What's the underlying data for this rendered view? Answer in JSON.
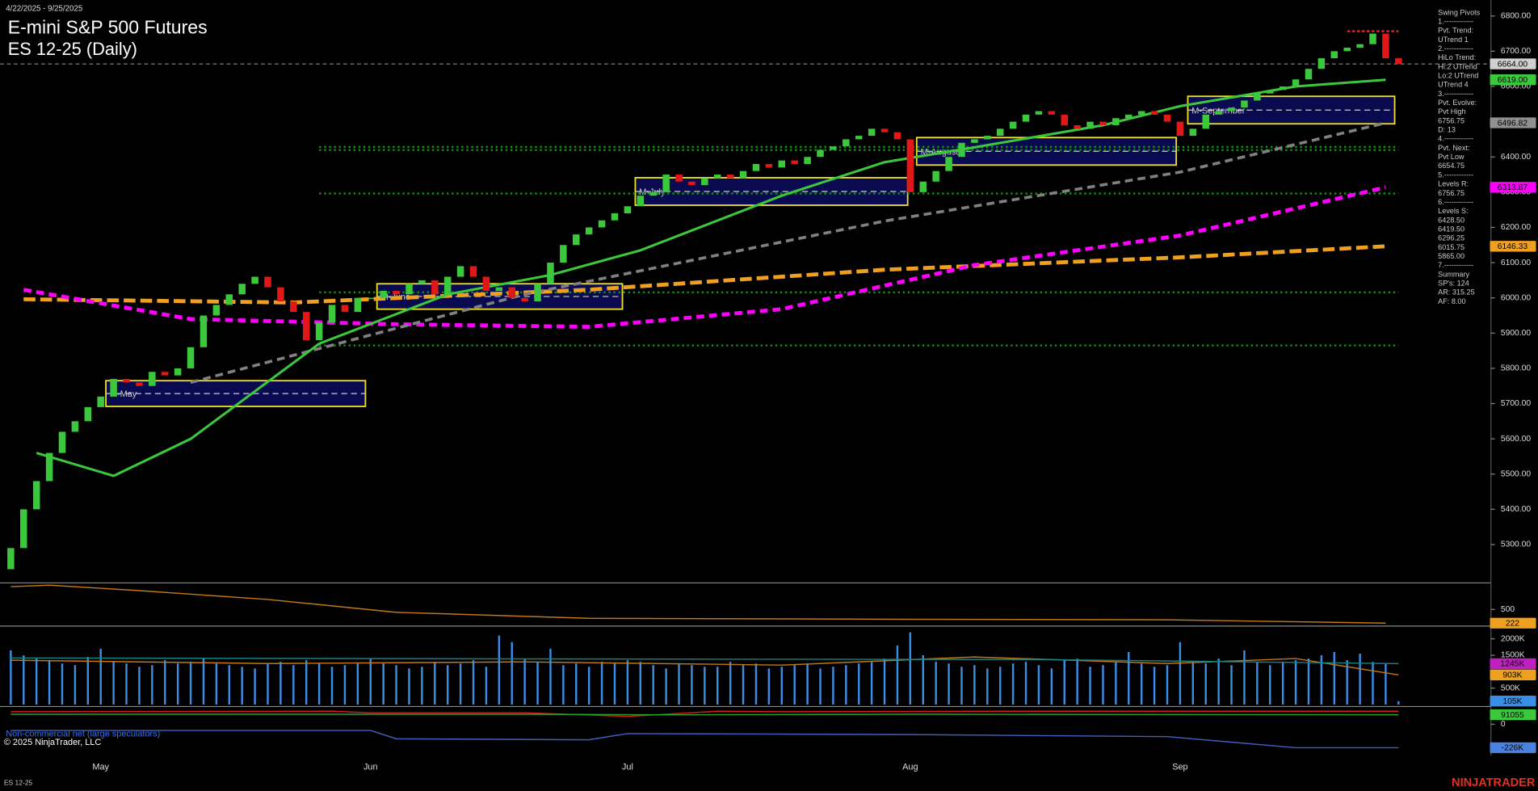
{
  "header": {
    "range": "4/22/2025 - 9/25/2025",
    "title": "E-mini S&P 500 Futures",
    "subtitle": "ES 12-25 (Daily)"
  },
  "footer": {
    "copyright": "© 2025 NinjaTrader, LLC",
    "instrument": "ES 12-25",
    "brand": "NINJATRADER",
    "cot_label": "Non-commercial net (large speculators)"
  },
  "info_panel": [
    "Swing Pivots",
    "1.------------",
    "Pvt. Trend:",
    "UTrend 1",
    "2.------------",
    "HiLo Trend:",
    "Hi:2 UTrend",
    "Lo:2 UTrend",
    "UTrend 4",
    "3.------------",
    "Pvt. Evolve:",
    "Pvt High",
    "6756.75",
    "D: 13",
    "4.------------",
    "Pvt. Next:",
    "Pvt Low",
    "6654.75",
    "5.------------",
    "Levels R:",
    "6756.75",
    "6.------------",
    "Levels S:",
    "6428.50",
    "6419.50",
    "6296.25",
    "6015.75",
    "5865.00",
    "7.------------",
    "Summary",
    "SP's: 124",
    "AR: 315.25",
    "AF: 8.00"
  ],
  "chart_data": [
    {
      "type": "candlestick",
      "categories": [
        null,
        null,
        null,
        null,
        null,
        null,
        null,
        "May",
        null,
        null,
        null,
        null,
        null,
        null,
        null,
        null,
        null,
        null,
        null,
        null,
        null,
        null,
        null,
        null,
        null,
        null,
        null,
        null,
        "Jun",
        null,
        null,
        null,
        null,
        null,
        null,
        null,
        null,
        null,
        null,
        null,
        null,
        null,
        null,
        null,
        null,
        null,
        null,
        null,
        "Jul",
        null,
        null,
        null,
        null,
        null,
        null,
        null,
        null,
        null,
        null,
        null,
        null,
        null,
        null,
        null,
        null,
        null,
        null,
        null,
        null,
        null,
        "Aug",
        null,
        null,
        null,
        null,
        null,
        null,
        null,
        null,
        null,
        null,
        null,
        null,
        null,
        null,
        null,
        null,
        null,
        null,
        null,
        null,
        "Sep",
        null,
        null,
        null,
        null,
        null,
        null,
        null,
        null,
        null,
        null,
        null,
        null,
        null,
        null,
        null,
        null,
        null
      ],
      "open": [
        5230,
        5290,
        5400,
        5480,
        5560,
        5620,
        5650,
        5690,
        5720,
        5770,
        5760,
        5750,
        5790,
        5780,
        5800,
        5860,
        5950,
        5980,
        6010,
        6040,
        6060,
        6030,
        5990,
        5960,
        5880,
        5930,
        5980,
        5960,
        6000,
        6000,
        6020,
        6010,
        6040,
        6050,
        6010,
        6060,
        6090,
        6060,
        6020,
        6030,
        6000,
        5990,
        6040,
        6100,
        6150,
        6180,
        6200,
        6220,
        6240,
        6260,
        6290,
        6300,
        6350,
        6330,
        6320,
        6340,
        6350,
        6340,
        6360,
        6380,
        6370,
        6390,
        6380,
        6400,
        6420,
        6430,
        6450,
        6460,
        6480,
        6470,
        6450,
        6300,
        6330,
        6360,
        6400,
        6440,
        6450,
        6460,
        6480,
        6500,
        6520,
        6530,
        6520,
        6490,
        6480,
        6500,
        6490,
        6510,
        6520,
        6530,
        6520,
        6500,
        6460,
        6480,
        6520,
        6530,
        6540,
        6560,
        6580,
        6590,
        6600,
        6620,
        6650,
        6680,
        6700,
        6710,
        6720,
        6750,
        6680
      ],
      "close": [
        5290,
        5400,
        5480,
        5560,
        5620,
        5650,
        5690,
        5720,
        5770,
        5760,
        5750,
        5790,
        5780,
        5800,
        5860,
        5950,
        5980,
        6010,
        6040,
        6060,
        6030,
        5990,
        5960,
        5880,
        5930,
        5980,
        5960,
        6000,
        6000,
        6020,
        6010,
        6040,
        6050,
        6010,
        6060,
        6090,
        6060,
        6020,
        6030,
        6000,
        5990,
        6040,
        6100,
        6150,
        6180,
        6200,
        6220,
        6240,
        6260,
        6290,
        6300,
        6350,
        6330,
        6320,
        6340,
        6350,
        6340,
        6360,
        6380,
        6370,
        6390,
        6380,
        6400,
        6420,
        6430,
        6450,
        6460,
        6480,
        6470,
        6450,
        6300,
        6330,
        6360,
        6400,
        6440,
        6450,
        6460,
        6480,
        6500,
        6520,
        6530,
        6520,
        6490,
        6480,
        6500,
        6490,
        6510,
        6520,
        6530,
        6520,
        6500,
        6460,
        6480,
        6520,
        6530,
        6540,
        6560,
        6580,
        6590,
        6600,
        6620,
        6650,
        6680,
        6700,
        6710,
        6720,
        6750,
        6680,
        6664
      ],
      "up_color": "#3cc83c",
      "down_color": "#e01818",
      "ylim": [
        5194,
        6845
      ],
      "yticks": [
        {
          "value": 6800,
          "label": "6800.00"
        },
        {
          "value": 6700,
          "label": "6700.00"
        },
        {
          "value": 6600,
          "label": "6600.00"
        },
        {
          "value": 6500,
          "label": "6500.00"
        },
        {
          "value": 6400,
          "label": "6400.00"
        },
        {
          "value": 6300,
          "label": "6300.00"
        },
        {
          "value": 6200,
          "label": "6200.00"
        },
        {
          "value": 6100,
          "label": "6100.00"
        },
        {
          "value": 6000,
          "label": "6000.00"
        },
        {
          "value": 5900,
          "label": "5900.00"
        },
        {
          "value": 5800,
          "label": "5800.00"
        },
        {
          "value": 5700,
          "label": "5700.00"
        },
        {
          "value": 5600,
          "label": "5600.00"
        },
        {
          "value": 5500,
          "label": "5500.00"
        },
        {
          "value": 5400,
          "label": "5400.00"
        },
        {
          "value": 5300,
          "label": "5300.00"
        }
      ],
      "overlays": [
        {
          "color": "#f0a020",
          "dash": "12 5",
          "width": 4,
          "x": [
            1,
            22,
            45,
            68,
            91,
            107
          ],
          "values": [
            5996,
            5987,
            6023,
            6080,
            6115,
            6146.33
          ]
        },
        {
          "color": "#ff00ff",
          "dash": "8 5",
          "width": 4,
          "x": [
            1,
            14,
            30,
            45,
            60,
            75,
            91,
            107
          ],
          "values": [
            6023,
            5940,
            5925,
            5918,
            5968,
            6093,
            6177,
            6313.87
          ]
        },
        {
          "color": "#808080",
          "dash": "8 5",
          "width": 3,
          "x": [
            14,
            40,
            68,
            91,
            107
          ],
          "values": [
            5760,
            6010,
            6218,
            6357,
            6496.82
          ]
        },
        {
          "color": "#3cc83c",
          "dash": "",
          "width": 2.5,
          "x": [
            2,
            8,
            14,
            24,
            34,
            42,
            49,
            60,
            68,
            75,
            85,
            91,
            100,
            107
          ],
          "values": [
            5560,
            5495,
            5600,
            5870,
            6010,
            6065,
            6135,
            6290,
            6385,
            6427,
            6490,
            6544,
            6600,
            6619
          ]
        }
      ],
      "support_levels": [
        6428.5,
        6419.5,
        6296.25,
        6015.75,
        5865
      ],
      "resistance_levels": [
        6756.75
      ],
      "boxes": [
        {
          "label": "M-May",
          "x": [
            7.4,
            27.6
          ],
          "y": [
            5692,
            5765
          ]
        },
        {
          "label": "M-June",
          "x": [
            28.5,
            47.6
          ],
          "y": [
            5968,
            6040
          ]
        },
        {
          "label": "M-July",
          "x": [
            48.6,
            69.8
          ],
          "y": [
            6263,
            6341
          ]
        },
        {
          "label": "M-August",
          "x": [
            70.5,
            90.7
          ],
          "y": [
            6377,
            6455
          ]
        },
        {
          "label": "M-September",
          "x": [
            91.6,
            107.7
          ],
          "y": [
            6494,
            6572
          ]
        }
      ],
      "last_labels": [
        {
          "value": 6664,
          "label": "6664.00",
          "color": "#d0d0d0"
        },
        {
          "value": 6619,
          "label": "6619.00",
          "color": "#3cc83c"
        },
        {
          "value": 6496.82,
          "label": "6496.82",
          "color": "#909090"
        },
        {
          "value": 6313.87,
          "label": "6313.87",
          "color": "#ff00ff"
        },
        {
          "value": 6146.33,
          "label": "6146.33",
          "color": "#f0a020"
        }
      ]
    },
    {
      "type": "line",
      "ylim": [
        183,
        1016
      ],
      "yticks": [
        500
      ],
      "series": [
        {
          "color": "#c07818",
          "x": [
            0,
            3,
            10,
            20,
            30,
            45,
            70,
            90,
            107
          ],
          "values": [
            960,
            990,
            880,
            700,
            440,
            320,
            300,
            290,
            222
          ]
        }
      ],
      "last_labels": [
        {
          "value": 222,
          "label": "222",
          "color": "#f0a020"
        }
      ]
    },
    {
      "type": "bar",
      "color": "#3a8ee6",
      "ylim": [
        0,
        2330
      ],
      "yticks": [
        {
          "value": 2000,
          "label": "2000K"
        },
        {
          "value": 1500,
          "label": "1500K"
        },
        {
          "value": 500,
          "label": "500K"
        }
      ],
      "values": [
        1650,
        1500,
        1400,
        1350,
        1250,
        1200,
        1450,
        1700,
        1300,
        1250,
        1150,
        1200,
        1350,
        1250,
        1300,
        1400,
        1250,
        1200,
        1150,
        1100,
        1250,
        1300,
        1200,
        1350,
        1250,
        1150,
        1200,
        1250,
        1400,
        1250,
        1200,
        1100,
        1150,
        1300,
        1200,
        1250,
        1350,
        1150,
        2100,
        1900,
        1400,
        1300,
        1700,
        1200,
        1250,
        1150,
        1300,
        1250,
        1350,
        1300,
        1200,
        1100,
        1250,
        1200,
        1150,
        1150,
        1300,
        1200,
        1250,
        1100,
        1150,
        1200,
        1250,
        1100,
        1150,
        1200,
        1250,
        1300,
        1400,
        1800,
        2200,
        1500,
        1300,
        1250,
        1150,
        1200,
        1100,
        1150,
        1250,
        1300,
        1200,
        1100,
        1350,
        1400,
        1150,
        1200,
        1300,
        1600,
        1250,
        1150,
        1200,
        1900,
        1300,
        1250,
        1400,
        1200,
        1650,
        1300,
        1200,
        1300,
        1350,
        1400,
        1500,
        1600,
        1350,
        1550,
        1300,
        1250,
        105
      ],
      "series": [
        {
          "color": "#c07818",
          "x": [
            0,
            20,
            40,
            60,
            75,
            90,
            100,
            108
          ],
          "values": [
            1350,
            1250,
            1300,
            1200,
            1450,
            1250,
            1400,
            903
          ]
        },
        {
          "color": "#1a8080",
          "x": [
            0,
            40,
            80,
            108
          ],
          "values": [
            1420,
            1390,
            1370,
            1245
          ]
        }
      ],
      "last_labels": [
        {
          "value": 1245,
          "label": "1245K",
          "color": "#c020c0"
        },
        {
          "value": 903,
          "label": "903K",
          "color": "#f0a020"
        },
        {
          "value": 105,
          "label": "105K",
          "color": "#3a8ee6"
        }
      ]
    },
    {
      "type": "line",
      "ylim": [
        -264000,
        170000
      ],
      "yticks": [
        0
      ],
      "series": [
        {
          "color": "#d02020",
          "x": [
            0,
            25,
            28,
            40,
            48,
            55,
            60,
            80,
            108
          ],
          "values": [
            120000,
            125000,
            110000,
            110000,
            75000,
            125000,
            120000,
            125000,
            125000
          ]
        },
        {
          "color": "#2aa02a",
          "x": [
            0,
            40,
            50,
            70,
            108
          ],
          "values": [
            95000,
            95000,
            90000,
            95000,
            91055
          ]
        },
        {
          "color": "#4060c0",
          "x": [
            0,
            28,
            30,
            45,
            48,
            70,
            90,
            100,
            108
          ],
          "values": [
            -60000,
            -60000,
            -140000,
            -150000,
            -90000,
            -100000,
            -120000,
            -226000,
            -226000
          ]
        }
      ],
      "last_labels": [
        {
          "value": 91055,
          "label": "91055",
          "color": "#3cc83c"
        },
        {
          "value": -226000,
          "label": "-226K",
          "color": "#4a80e0"
        }
      ]
    }
  ]
}
